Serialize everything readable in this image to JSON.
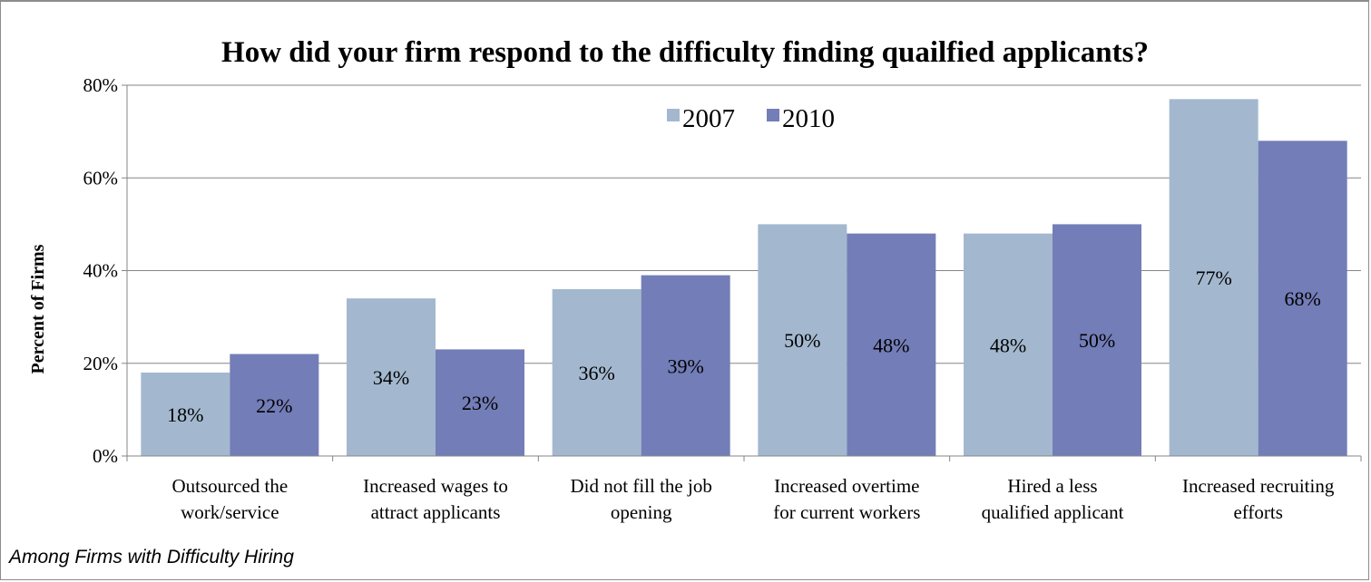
{
  "chart_data": {
    "type": "bar",
    "title": "How did your firm respond to the difficulty finding quailfied applicants?",
    "ylabel": "Percent of Firms",
    "xlabel": "",
    "ylim": [
      0,
      80
    ],
    "yticks": [
      0,
      20,
      40,
      60,
      80
    ],
    "ytick_labels": [
      "0%",
      "20%",
      "40%",
      "60%",
      "80%"
    ],
    "grid": true,
    "legend_position": "top-center",
    "categories": [
      [
        "Outsourced the",
        "work/service"
      ],
      [
        "Increased wages to",
        "attract applicants"
      ],
      [
        "Did not fill the job",
        "opening"
      ],
      [
        "Increased overtime",
        "for current workers"
      ],
      [
        "Hired a less",
        "qualified applicant"
      ],
      [
        "Increased recruiting",
        "efforts"
      ]
    ],
    "series": [
      {
        "name": "2007",
        "color": "#a3b8cf",
        "values": [
          18,
          34,
          36,
          50,
          48,
          77
        ],
        "labels": [
          "18%",
          "34%",
          "36%",
          "50%",
          "48%",
          "77%"
        ]
      },
      {
        "name": "2010",
        "color": "#737db7",
        "values": [
          22,
          23,
          39,
          48,
          50,
          68
        ],
        "labels": [
          "22%",
          "23%",
          "39%",
          "48%",
          "50%",
          "68%"
        ]
      }
    ]
  },
  "footnote": "Among Firms with Difficulty Hiring"
}
